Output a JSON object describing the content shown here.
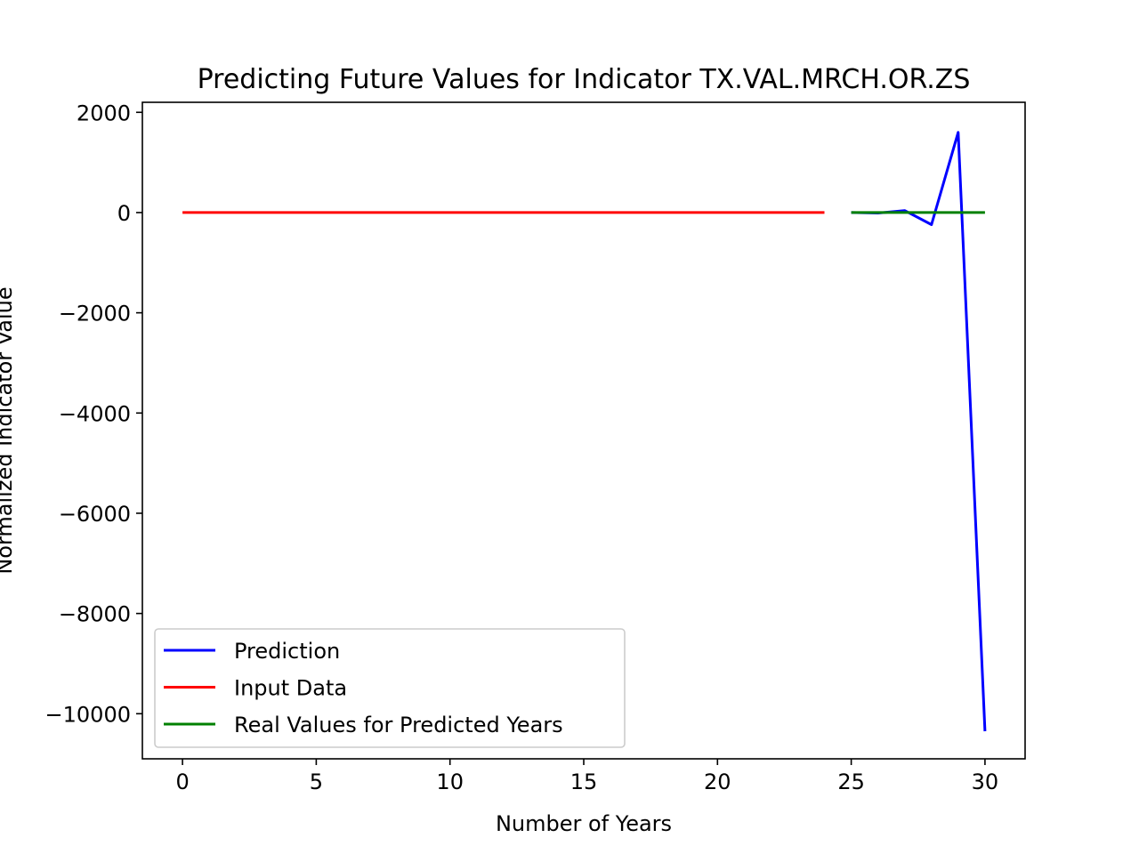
{
  "chart_data": {
    "type": "line",
    "title": "Predicting Future Values for Indicator TX.VAL.MRCH.OR.ZS",
    "xlabel": "Number of Years",
    "ylabel": "Normalized Indicator Value",
    "xlim": [
      -1.5,
      31.5
    ],
    "ylim": [
      -10900,
      2200
    ],
    "x_ticks": [
      0,
      5,
      10,
      15,
      20,
      25,
      30
    ],
    "x_tick_labels": [
      "0",
      "5",
      "10",
      "15",
      "20",
      "25",
      "30"
    ],
    "y_ticks": [
      2000,
      0,
      -2000,
      -4000,
      -6000,
      -8000,
      -10000
    ],
    "y_tick_labels": [
      "2000",
      "0",
      "−2000",
      "−4000",
      "−6000",
      "−8000",
      "−10000"
    ],
    "grid": false,
    "legend_position": "lower-left",
    "series": [
      {
        "name": "Prediction",
        "color": "#0000ff",
        "x": [
          25,
          26,
          27,
          28,
          29,
          30
        ],
        "y": [
          0,
          -10,
          40,
          -240,
          1600,
          -10350
        ]
      },
      {
        "name": "Input Data",
        "color": "#ff0000",
        "x": [
          0,
          1,
          2,
          3,
          4,
          5,
          6,
          7,
          8,
          9,
          10,
          11,
          12,
          13,
          14,
          15,
          16,
          17,
          18,
          19,
          20,
          21,
          22,
          23,
          24
        ],
        "y": [
          0,
          0,
          0,
          0,
          0,
          0,
          0,
          0,
          0,
          0,
          0,
          0,
          0,
          0,
          0,
          0,
          0,
          0,
          0,
          0,
          0,
          0,
          0,
          0,
          0
        ]
      },
      {
        "name": "Real Values for Predicted Years",
        "color": "#008000",
        "x": [
          25,
          26,
          27,
          28,
          29,
          30
        ],
        "y": [
          0,
          0,
          0,
          0,
          0,
          0
        ]
      }
    ]
  }
}
